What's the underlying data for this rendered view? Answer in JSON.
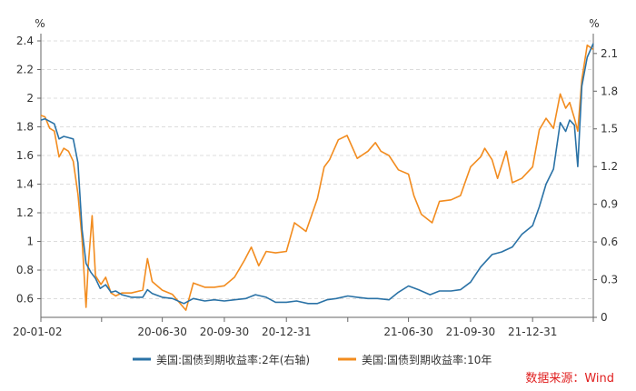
{
  "chart_data": {
    "type": "line",
    "y_left": {
      "unit": "%",
      "ticks": [
        "0.6",
        "0.8",
        "1",
        "1.2",
        "1.4",
        "1.6",
        "1.8",
        "2",
        "2.2",
        "2.4"
      ],
      "range": [
        0.47,
        2.4
      ]
    },
    "y_right": {
      "unit": "%",
      "ticks": [
        "0",
        "0.3",
        "0.6",
        "0.9",
        "1.2",
        "1.5",
        "1.8",
        "2.1"
      ],
      "range": [
        0,
        2.2
      ]
    },
    "x_ticks": [
      "20-01-02",
      "20-06-30",
      "20-09-30",
      "20-12-31",
      "21-06-30",
      "21-09-30",
      "21-12-31"
    ],
    "x_start": "2020-01-02",
    "x_end": "2022-03-31",
    "grid": true,
    "legend_position": "bottom",
    "series": [
      {
        "name": "美国:国债到期收益率:2年(右轴)",
        "axis": "right",
        "color": "#2a72a6",
        "points": [
          [
            "2020-01-02",
            1.57
          ],
          [
            "2020-01-08",
            1.58
          ],
          [
            "2020-01-15",
            1.56
          ],
          [
            "2020-01-22",
            1.54
          ],
          [
            "2020-01-29",
            1.42
          ],
          [
            "2020-02-05",
            1.44
          ],
          [
            "2020-02-12",
            1.43
          ],
          [
            "2020-02-19",
            1.42
          ],
          [
            "2020-02-26",
            1.23
          ],
          [
            "2020-03-03",
            0.7
          ],
          [
            "2020-03-09",
            0.43
          ],
          [
            "2020-03-16",
            0.36
          ],
          [
            "2020-03-23",
            0.31
          ],
          [
            "2020-03-30",
            0.23
          ],
          [
            "2020-04-07",
            0.26
          ],
          [
            "2020-04-15",
            0.2
          ],
          [
            "2020-04-22",
            0.21
          ],
          [
            "2020-05-01",
            0.18
          ],
          [
            "2020-05-15",
            0.16
          ],
          [
            "2020-06-01",
            0.16
          ],
          [
            "2020-06-08",
            0.22
          ],
          [
            "2020-06-15",
            0.19
          ],
          [
            "2020-06-30",
            0.16
          ],
          [
            "2020-07-15",
            0.15
          ],
          [
            "2020-08-01",
            0.11
          ],
          [
            "2020-08-15",
            0.15
          ],
          [
            "2020-09-01",
            0.13
          ],
          [
            "2020-09-15",
            0.14
          ],
          [
            "2020-09-30",
            0.13
          ],
          [
            "2020-10-15",
            0.14
          ],
          [
            "2020-11-01",
            0.15
          ],
          [
            "2020-11-15",
            0.18
          ],
          [
            "2020-12-01",
            0.16
          ],
          [
            "2020-12-15",
            0.12
          ],
          [
            "2020-12-31",
            0.12
          ],
          [
            "2021-01-15",
            0.13
          ],
          [
            "2021-02-01",
            0.11
          ],
          [
            "2021-02-15",
            0.11
          ],
          [
            "2021-03-01",
            0.14
          ],
          [
            "2021-03-15",
            0.15
          ],
          [
            "2021-04-01",
            0.17
          ],
          [
            "2021-04-15",
            0.16
          ],
          [
            "2021-05-01",
            0.15
          ],
          [
            "2021-05-15",
            0.15
          ],
          [
            "2021-06-01",
            0.14
          ],
          [
            "2021-06-15",
            0.2
          ],
          [
            "2021-06-30",
            0.25
          ],
          [
            "2021-07-15",
            0.22
          ],
          [
            "2021-08-01",
            0.18
          ],
          [
            "2021-08-15",
            0.21
          ],
          [
            "2021-09-01",
            0.21
          ],
          [
            "2021-09-15",
            0.22
          ],
          [
            "2021-09-30",
            0.28
          ],
          [
            "2021-10-15",
            0.4
          ],
          [
            "2021-11-01",
            0.5
          ],
          [
            "2021-11-15",
            0.52
          ],
          [
            "2021-12-01",
            0.56
          ],
          [
            "2021-12-15",
            0.66
          ],
          [
            "2021-12-31",
            0.73
          ],
          [
            "2022-01-10",
            0.88
          ],
          [
            "2022-01-20",
            1.06
          ],
          [
            "2022-01-31",
            1.18
          ],
          [
            "2022-02-10",
            1.55
          ],
          [
            "2022-02-18",
            1.48
          ],
          [
            "2022-02-24",
            1.57
          ],
          [
            "2022-03-03",
            1.53
          ],
          [
            "2022-03-08",
            1.2
          ],
          [
            "2022-03-14",
            1.84
          ],
          [
            "2022-03-22",
            2.07
          ],
          [
            "2022-03-31",
            2.18
          ]
        ]
      },
      {
        "name": "美国:国债到期收益率:10年",
        "axis": "left",
        "color": "#f28c1f",
        "points": [
          [
            "2020-01-02",
            1.88
          ],
          [
            "2020-01-08",
            1.87
          ],
          [
            "2020-01-15",
            1.79
          ],
          [
            "2020-01-22",
            1.77
          ],
          [
            "2020-01-29",
            1.59
          ],
          [
            "2020-02-05",
            1.65
          ],
          [
            "2020-02-12",
            1.63
          ],
          [
            "2020-02-19",
            1.56
          ],
          [
            "2020-02-26",
            1.33
          ],
          [
            "2020-03-03",
            1.02
          ],
          [
            "2020-03-09",
            0.54
          ],
          [
            "2020-03-12",
            0.82
          ],
          [
            "2020-03-18",
            1.18
          ],
          [
            "2020-03-23",
            0.76
          ],
          [
            "2020-03-31",
            0.7
          ],
          [
            "2020-04-07",
            0.75
          ],
          [
            "2020-04-15",
            0.64
          ],
          [
            "2020-04-22",
            0.62
          ],
          [
            "2020-05-01",
            0.64
          ],
          [
            "2020-05-15",
            0.64
          ],
          [
            "2020-06-01",
            0.66
          ],
          [
            "2020-06-08",
            0.88
          ],
          [
            "2020-06-15",
            0.72
          ],
          [
            "2020-06-30",
            0.66
          ],
          [
            "2020-07-15",
            0.63
          ],
          [
            "2020-08-04",
            0.52
          ],
          [
            "2020-08-15",
            0.71
          ],
          [
            "2020-09-01",
            0.68
          ],
          [
            "2020-09-15",
            0.68
          ],
          [
            "2020-09-30",
            0.69
          ],
          [
            "2020-10-15",
            0.75
          ],
          [
            "2020-10-30",
            0.87
          ],
          [
            "2020-11-09",
            0.96
          ],
          [
            "2020-11-20",
            0.83
          ],
          [
            "2020-12-01",
            0.93
          ],
          [
            "2020-12-15",
            0.92
          ],
          [
            "2020-12-31",
            0.93
          ],
          [
            "2021-01-12",
            1.13
          ],
          [
            "2021-01-29",
            1.07
          ],
          [
            "2021-02-15",
            1.3
          ],
          [
            "2021-02-25",
            1.52
          ],
          [
            "2021-03-05",
            1.57
          ],
          [
            "2021-03-18",
            1.71
          ],
          [
            "2021-03-31",
            1.74
          ],
          [
            "2021-04-15",
            1.58
          ],
          [
            "2021-05-01",
            1.63
          ],
          [
            "2021-05-12",
            1.69
          ],
          [
            "2021-05-20",
            1.63
          ],
          [
            "2021-06-01",
            1.6
          ],
          [
            "2021-06-15",
            1.5
          ],
          [
            "2021-06-30",
            1.47
          ],
          [
            "2021-07-08",
            1.32
          ],
          [
            "2021-07-19",
            1.19
          ],
          [
            "2021-08-04",
            1.13
          ],
          [
            "2021-08-15",
            1.28
          ],
          [
            "2021-09-01",
            1.29
          ],
          [
            "2021-09-15",
            1.32
          ],
          [
            "2021-09-30",
            1.52
          ],
          [
            "2021-10-15",
            1.59
          ],
          [
            "2021-10-21",
            1.65
          ],
          [
            "2021-11-01",
            1.57
          ],
          [
            "2021-11-09",
            1.44
          ],
          [
            "2021-11-22",
            1.63
          ],
          [
            "2021-12-01",
            1.41
          ],
          [
            "2021-12-15",
            1.44
          ],
          [
            "2021-12-31",
            1.52
          ],
          [
            "2022-01-10",
            1.78
          ],
          [
            "2022-01-20",
            1.86
          ],
          [
            "2022-01-31",
            1.79
          ],
          [
            "2022-02-10",
            2.03
          ],
          [
            "2022-02-18",
            1.93
          ],
          [
            "2022-02-24",
            1.97
          ],
          [
            "2022-03-03",
            1.86
          ],
          [
            "2022-03-08",
            1.77
          ],
          [
            "2022-03-14",
            2.13
          ],
          [
            "2022-03-22",
            2.37
          ],
          [
            "2022-03-31",
            2.34
          ]
        ]
      }
    ]
  },
  "source": "数据来源：Wind"
}
